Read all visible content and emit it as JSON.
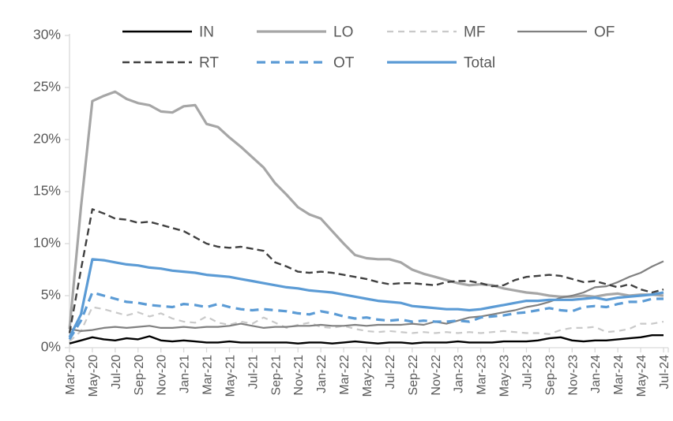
{
  "chart_data": {
    "type": "line",
    "title": "",
    "xlabel": "",
    "ylabel": "",
    "y_axis": {
      "min": 0,
      "max": 30,
      "step": 5,
      "tick_labels": [
        "0%",
        "5%",
        "10%",
        "15%",
        "20%",
        "25%",
        "30%"
      ]
    },
    "x_tick_every": 2,
    "x": [
      "Mar-20",
      "Apr-20",
      "May-20",
      "Jun-20",
      "Jul-20",
      "Aug-20",
      "Sep-20",
      "Oct-20",
      "Nov-20",
      "Dec-20",
      "Jan-21",
      "Feb-21",
      "Mar-21",
      "Apr-21",
      "May-21",
      "Jun-21",
      "Jul-21",
      "Aug-21",
      "Sep-21",
      "Oct-21",
      "Nov-21",
      "Dec-21",
      "Jan-22",
      "Feb-22",
      "Mar-22",
      "Apr-22",
      "May-22",
      "Jun-22",
      "Jul-22",
      "Aug-22",
      "Sep-22",
      "Oct-22",
      "Nov-22",
      "Dec-22",
      "Jan-23",
      "Feb-23",
      "Mar-23",
      "Apr-23",
      "May-23",
      "Jun-23",
      "Jul-23",
      "Aug-23",
      "Sep-23",
      "Oct-23",
      "Nov-23",
      "Dec-23",
      "Jan-24",
      "Feb-24",
      "Mar-24",
      "Apr-24",
      "May-24",
      "Jun-24",
      "Jul-24"
    ],
    "series": [
      {
        "name": "IN",
        "color": "#000000",
        "dash": null,
        "width": 2.4,
        "values": [
          0.4,
          0.7,
          1.0,
          0.8,
          0.7,
          0.9,
          0.8,
          1.1,
          0.7,
          0.6,
          0.7,
          0.6,
          0.5,
          0.5,
          0.6,
          0.5,
          0.5,
          0.5,
          0.5,
          0.5,
          0.4,
          0.5,
          0.5,
          0.4,
          0.5,
          0.6,
          0.5,
          0.4,
          0.5,
          0.5,
          0.4,
          0.5,
          0.5,
          0.5,
          0.6,
          0.5,
          0.5,
          0.5,
          0.6,
          0.6,
          0.6,
          0.7,
          0.9,
          1.0,
          0.7,
          0.6,
          0.7,
          0.7,
          0.8,
          0.9,
          1.0,
          1.2,
          1.2
        ]
      },
      {
        "name": "LO",
        "color": "#A6A6A6",
        "dash": null,
        "width": 3.2,
        "values": [
          1.8,
          13.5,
          23.7,
          24.2,
          24.6,
          23.9,
          23.5,
          23.3,
          22.7,
          22.6,
          23.2,
          23.3,
          21.5,
          21.2,
          20.2,
          19.3,
          18.3,
          17.3,
          15.8,
          14.7,
          13.5,
          12.8,
          12.4,
          11.2,
          10.0,
          8.9,
          8.6,
          8.5,
          8.5,
          8.2,
          7.5,
          7.1,
          6.8,
          6.5,
          6.2,
          6.0,
          6.1,
          6.0,
          5.7,
          5.5,
          5.3,
          5.2,
          5.0,
          4.9,
          4.9,
          5.0,
          4.9,
          5.1,
          5.2,
          5.0,
          5.1,
          5.1,
          5.0
        ]
      },
      {
        "name": "MF",
        "color": "#C9C9C9",
        "dash": "8 6",
        "width": 2.2,
        "values": [
          0.6,
          1.6,
          3.9,
          3.7,
          3.4,
          3.1,
          3.4,
          3.0,
          3.3,
          2.8,
          2.5,
          2.4,
          3.0,
          2.4,
          2.2,
          2.5,
          2.3,
          2.9,
          2.4,
          1.9,
          2.2,
          2.4,
          2.0,
          1.9,
          2.1,
          1.8,
          1.6,
          1.5,
          1.6,
          1.5,
          1.4,
          1.5,
          1.4,
          1.5,
          1.4,
          1.5,
          1.4,
          1.5,
          1.6,
          1.5,
          1.4,
          1.4,
          1.3,
          1.7,
          1.9,
          1.9,
          2.0,
          1.5,
          1.6,
          1.8,
          2.3,
          2.3,
          2.5
        ]
      },
      {
        "name": "OF",
        "color": "#808080",
        "dash": null,
        "width": 2.2,
        "values": [
          1.8,
          1.6,
          1.7,
          1.9,
          2.0,
          1.9,
          2.0,
          2.1,
          1.9,
          1.9,
          2.0,
          1.9,
          2.0,
          2.0,
          2.1,
          2.3,
          2.1,
          1.9,
          2.0,
          2.0,
          2.1,
          2.1,
          2.2,
          2.1,
          2.1,
          2.2,
          2.1,
          2.2,
          2.2,
          2.2,
          2.3,
          2.2,
          2.5,
          2.3,
          2.6,
          2.9,
          3.0,
          3.2,
          3.4,
          3.6,
          3.9,
          4.1,
          4.4,
          4.8,
          5.0,
          5.3,
          5.8,
          5.9,
          6.3,
          6.8,
          7.2,
          7.8,
          8.3
        ]
      },
      {
        "name": "RT",
        "color": "#404040",
        "dash": "9 5",
        "width": 2.4,
        "values": [
          1.4,
          7.5,
          13.3,
          12.9,
          12.4,
          12.3,
          12.0,
          12.1,
          11.8,
          11.5,
          11.2,
          10.6,
          10.0,
          9.7,
          9.6,
          9.7,
          9.5,
          9.3,
          8.2,
          7.8,
          7.3,
          7.2,
          7.3,
          7.2,
          7.0,
          6.8,
          6.6,
          6.3,
          6.1,
          6.2,
          6.2,
          6.1,
          6.0,
          6.3,
          6.4,
          6.4,
          6.2,
          5.9,
          6.0,
          6.5,
          6.8,
          6.9,
          7.0,
          6.9,
          6.6,
          6.3,
          6.4,
          6.1,
          5.8,
          6.1,
          5.6,
          5.3,
          5.6
        ]
      },
      {
        "name": "OT",
        "color": "#5B9BD5",
        "dash": "11 7",
        "width": 3.2,
        "values": [
          0.8,
          2.6,
          5.3,
          5.0,
          4.7,
          4.4,
          4.3,
          4.1,
          4.0,
          3.9,
          4.2,
          4.1,
          3.9,
          4.2,
          3.9,
          3.7,
          3.6,
          3.7,
          3.6,
          3.5,
          3.3,
          3.2,
          3.5,
          3.3,
          3.0,
          2.8,
          2.9,
          2.7,
          2.6,
          2.7,
          2.5,
          2.6,
          2.5,
          2.5,
          2.6,
          2.5,
          2.9,
          3.0,
          3.1,
          3.3,
          3.4,
          3.6,
          3.8,
          3.6,
          3.5,
          3.9,
          4.0,
          3.9,
          4.2,
          4.4,
          4.4,
          4.7,
          4.7
        ]
      },
      {
        "name": "Total",
        "color": "#5B9BD5",
        "dash": null,
        "width": 3.2,
        "values": [
          1.0,
          3.2,
          8.5,
          8.4,
          8.2,
          8.0,
          7.9,
          7.7,
          7.6,
          7.4,
          7.3,
          7.2,
          7.0,
          6.9,
          6.8,
          6.6,
          6.4,
          6.2,
          6.0,
          5.8,
          5.7,
          5.5,
          5.4,
          5.3,
          5.1,
          4.9,
          4.7,
          4.5,
          4.4,
          4.3,
          4.0,
          3.9,
          3.8,
          3.7,
          3.7,
          3.6,
          3.7,
          3.9,
          4.1,
          4.3,
          4.5,
          4.5,
          4.6,
          4.6,
          4.6,
          4.7,
          4.8,
          4.6,
          4.8,
          4.9,
          5.0,
          5.1,
          5.3
        ]
      }
    ],
    "legend": {
      "position": "top",
      "rows": [
        [
          "IN",
          "LO",
          "MF",
          "OF"
        ],
        [
          "RT",
          "OT",
          "Total"
        ]
      ]
    },
    "style": {
      "axis_color": "#D9D9D9",
      "label_color": "#595959",
      "background": "#FFFFFF",
      "grid": "off",
      "accent_blue": "#5B9BD5"
    }
  }
}
